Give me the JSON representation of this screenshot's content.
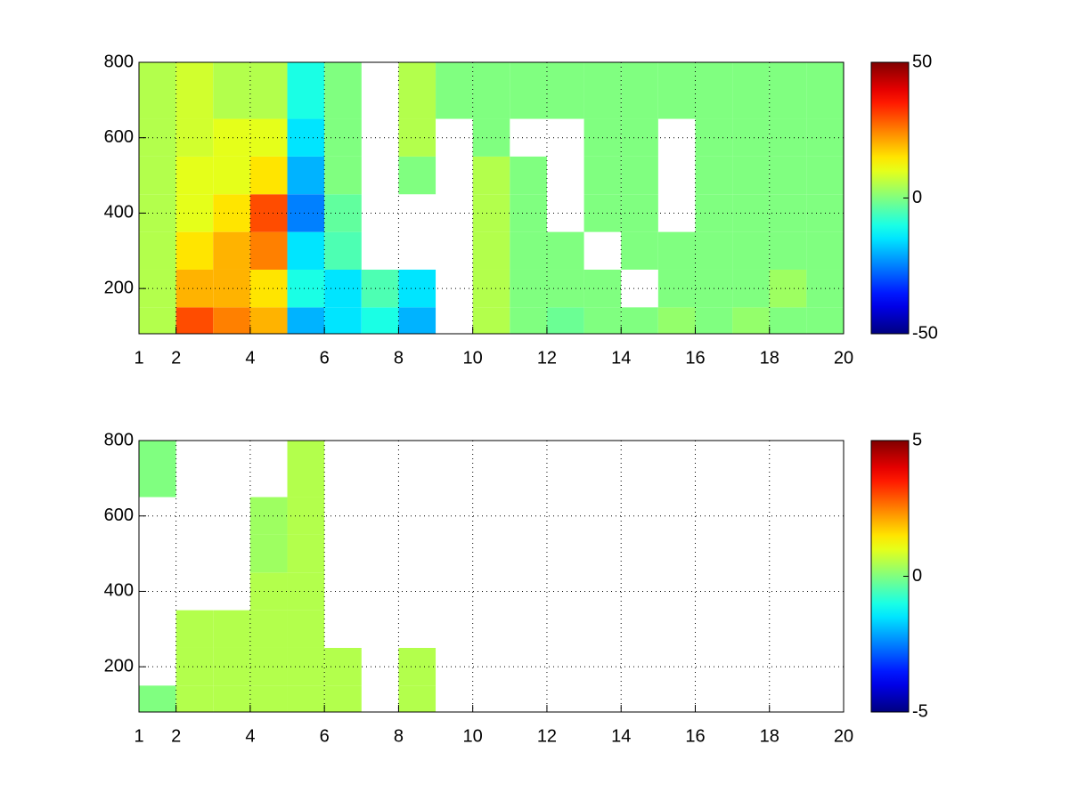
{
  "chart_data": [
    {
      "type": "heatmap",
      "colormap": "jet",
      "grid": true,
      "x_edges": [
        1,
        2,
        3,
        4,
        5,
        6,
        7,
        8,
        9,
        10,
        11,
        12,
        13,
        14,
        15,
        16,
        17,
        18,
        19,
        20
      ],
      "y_edges": [
        80,
        150,
        250,
        350,
        450,
        550,
        650,
        800
      ],
      "z": [
        [
          5,
          30,
          25,
          20,
          -20,
          -15,
          -10,
          -20,
          null,
          5,
          0,
          -2,
          0,
          0,
          2,
          0,
          2,
          0,
          0
        ],
        [
          5,
          20,
          20,
          15,
          -10,
          -15,
          -5,
          -15,
          null,
          5,
          0,
          0,
          0,
          null,
          0,
          0,
          0,
          3,
          0
        ],
        [
          5,
          15,
          20,
          25,
          -15,
          -5,
          null,
          null,
          null,
          5,
          0,
          0,
          null,
          0,
          0,
          0,
          0,
          0,
          0
        ],
        [
          5,
          10,
          15,
          30,
          -25,
          -3,
          null,
          null,
          null,
          5,
          0,
          null,
          0,
          0,
          null,
          0,
          0,
          0,
          0
        ],
        [
          5,
          10,
          10,
          15,
          -20,
          0,
          null,
          0,
          null,
          5,
          0,
          null,
          0,
          0,
          null,
          0,
          0,
          0,
          0
        ],
        [
          5,
          8,
          10,
          10,
          -15,
          0,
          null,
          5,
          null,
          0,
          null,
          null,
          0,
          0,
          null,
          0,
          0,
          0,
          0
        ],
        [
          5,
          8,
          5,
          5,
          -10,
          0,
          null,
          5,
          0,
          0,
          0,
          0,
          0,
          0,
          0,
          0,
          0,
          0,
          0
        ]
      ],
      "xlim": [
        1,
        20
      ],
      "xticks": [
        1,
        2,
        4,
        6,
        8,
        10,
        12,
        14,
        16,
        18,
        20
      ],
      "ylim": [
        80,
        800
      ],
      "yticks": [
        200,
        400,
        600,
        800
      ],
      "clim": [
        -50,
        50
      ],
      "cticks": [
        -50,
        0,
        50
      ]
    },
    {
      "type": "heatmap",
      "colormap": "jet",
      "grid": true,
      "x_edges": [
        1,
        2,
        3,
        4,
        5,
        6,
        7,
        8,
        9,
        10,
        11,
        12,
        13,
        14,
        15,
        16,
        17,
        18,
        19,
        20
      ],
      "y_edges": [
        80,
        150,
        250,
        350,
        450,
        550,
        650,
        800
      ],
      "z": [
        [
          0,
          0.5,
          0.5,
          0.5,
          0.5,
          0.5,
          null,
          0.5,
          null,
          null,
          null,
          null,
          null,
          null,
          null,
          null,
          null,
          null,
          null
        ],
        [
          null,
          0.5,
          0.5,
          0.5,
          0.5,
          0.5,
          null,
          0.5,
          null,
          null,
          null,
          null,
          null,
          null,
          null,
          null,
          null,
          null,
          null
        ],
        [
          null,
          0.5,
          0.5,
          0.5,
          0.5,
          null,
          null,
          null,
          null,
          null,
          null,
          null,
          null,
          null,
          null,
          null,
          null,
          null,
          null
        ],
        [
          null,
          null,
          null,
          0.5,
          0.5,
          null,
          null,
          null,
          null,
          null,
          null,
          null,
          null,
          null,
          null,
          null,
          null,
          null,
          null
        ],
        [
          null,
          null,
          null,
          0.3,
          0.5,
          null,
          null,
          null,
          null,
          null,
          null,
          null,
          null,
          null,
          null,
          null,
          null,
          null,
          null
        ],
        [
          null,
          null,
          null,
          0.3,
          0.5,
          null,
          null,
          null,
          null,
          null,
          null,
          null,
          null,
          null,
          null,
          null,
          null,
          null,
          null
        ],
        [
          0,
          null,
          null,
          null,
          0.5,
          null,
          null,
          null,
          null,
          null,
          null,
          null,
          null,
          null,
          null,
          null,
          null,
          null,
          null
        ]
      ],
      "xlim": [
        1,
        20
      ],
      "xticks": [
        1,
        2,
        4,
        6,
        8,
        10,
        12,
        14,
        16,
        18,
        20
      ],
      "ylim": [
        80,
        800
      ],
      "yticks": [
        200,
        400,
        600,
        800
      ],
      "clim": [
        -5,
        5
      ],
      "cticks": [
        -5,
        0,
        5
      ]
    }
  ]
}
